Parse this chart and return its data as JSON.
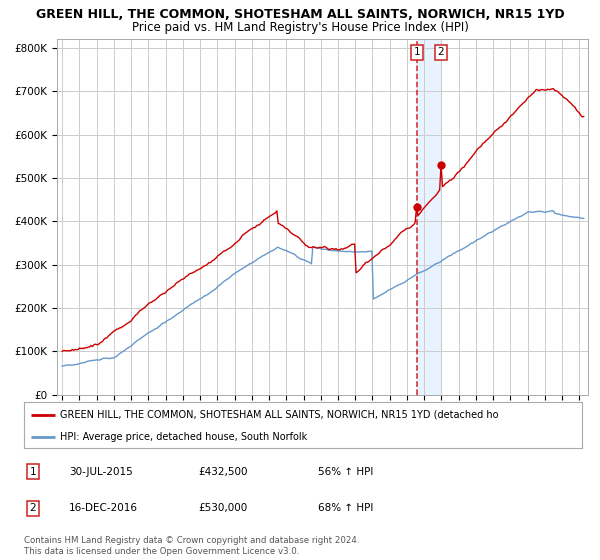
{
  "title": "GREEN HILL, THE COMMON, SHOTESHAM ALL SAINTS, NORWICH, NR15 1YD",
  "subtitle": "Price paid vs. HM Land Registry's House Price Index (HPI)",
  "ylim": [
    0,
    820000
  ],
  "yticks": [
    0,
    100000,
    200000,
    300000,
    400000,
    500000,
    600000,
    700000,
    800000
  ],
  "ytick_labels": [
    "£0",
    "£100K",
    "£200K",
    "£300K",
    "£400K",
    "£500K",
    "£600K",
    "£700K",
    "£800K"
  ],
  "red_color": "#cc0000",
  "blue_color": "#6699cc",
  "marker1_date": 2015.57,
  "marker1_value": 432500,
  "marker2_date": 2016.96,
  "marker2_value": 530000,
  "vline1_date": 2015.57,
  "vline2_date": 2016.96,
  "shade_start": 2015.57,
  "shade_end": 2016.96,
  "legend_red": "GREEN HILL, THE COMMON, SHOTESHAM ALL SAINTS, NORWICH, NR15 1YD (detached ho",
  "legend_blue": "HPI: Average price, detached house, South Norfolk",
  "table_row1": [
    "1",
    "30-JUL-2015",
    "£432,500",
    "56% ↑ HPI"
  ],
  "table_row2": [
    "2",
    "16-DEC-2016",
    "£530,000",
    "68% ↑ HPI"
  ],
  "footnote": "Contains HM Land Registry data © Crown copyright and database right 2024.\nThis data is licensed under the Open Government Licence v3.0.",
  "title_fontsize": 9,
  "subtitle_fontsize": 8.5,
  "background_color": "#ffffff",
  "grid_color": "#cccccc",
  "xlim_left": 1994.7,
  "xlim_right": 2025.5
}
